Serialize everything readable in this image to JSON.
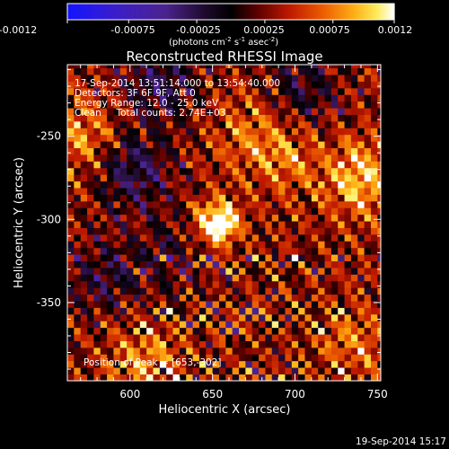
{
  "colorbar": {
    "ticks": [
      "-0.0012",
      "-0.00075",
      "-0.00025",
      "0.00025",
      "0.00075",
      "0.0012"
    ],
    "min": -0.0012,
    "max": 0.0012,
    "unit_main": "(photons cm",
    "unit_exp1": "-2",
    "unit_mid": " s",
    "unit_exp2": "-1",
    "unit_mid2": " asec",
    "unit_exp3": "-2",
    "unit_close": ")"
  },
  "title": "Reconstructed RHESSI Image",
  "annotations": {
    "line1": "17-Sep-2014 13:51:14.000 to 13:54:40.000",
    "line2": "Detectors: 3F 6F 9F, Att 0",
    "line3": "Energy Range: 12.0 - 25.0 keV",
    "line4": "Clean     Total counts: 2.74E+03",
    "peak": "Position of Peak = [653,-302]"
  },
  "footer_timestamp": "19-Sep-2014 15:17",
  "colors": {
    "background": "#000000",
    "text": "#ffffff"
  },
  "chart_data": {
    "type": "heatmap",
    "title": "Reconstructed RHESSI Image",
    "xlabel": "Heliocentric X (arcsec)",
    "ylabel": "Heliocentric Y (arcsec)",
    "xlim": [
      562,
      752
    ],
    "ylim": [
      -397,
      -207
    ],
    "x_ticks": [
      600,
      650,
      700,
      750
    ],
    "y_ticks": [
      -250,
      -300,
      -350
    ],
    "x_tick_labels": [
      "600",
      "650",
      "700",
      "750"
    ],
    "y_tick_labels": [
      "-250",
      "-300",
      "-350"
    ],
    "colormap": "rhessi-signed (blue-purple-black-red-orange-yellow-white)",
    "value_range": [
      -0.0012,
      0.0012
    ],
    "peak": {
      "x": 653,
      "y": -302
    },
    "features": [
      {
        "x": 653,
        "y": -302,
        "value": 0.0012
      },
      {
        "x": 740,
        "y": -275,
        "value": 0.0007
      },
      {
        "x": 600,
        "y": -270,
        "value": -0.0006
      },
      {
        "x": 618,
        "y": -218,
        "value": -0.0005
      },
      {
        "x": 705,
        "y": -222,
        "value": -0.0004
      },
      {
        "x": 585,
        "y": -335,
        "value": -0.0004
      },
      {
        "x": 572,
        "y": -252,
        "value": 0.0005
      },
      {
        "x": 692,
        "y": -262,
        "value": 0.0004
      },
      {
        "x": 610,
        "y": -385,
        "value": 0.0005
      },
      {
        "x": 735,
        "y": -375,
        "value": 0.0004
      },
      {
        "x": 625,
        "y": -320,
        "value": -0.0003
      },
      {
        "x": 670,
        "y": -245,
        "value": 0.0003
      }
    ]
  }
}
